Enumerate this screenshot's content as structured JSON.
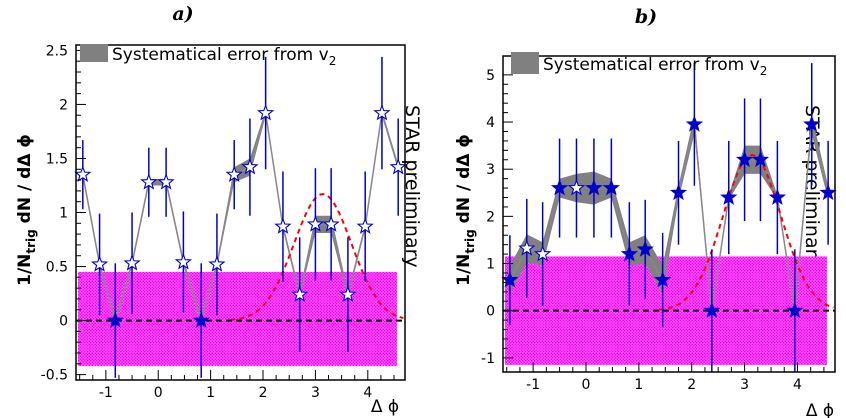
{
  "chart_data": [
    {
      "type": "scatter",
      "title": "a)",
      "ylabel_main": "1/N",
      "ylabel_sub": "trig",
      "ylabel_rest": " dN / dΔ ϕ",
      "xlabel": "Δ ϕ",
      "watermark": "STAR preliminary",
      "legend": {
        "label_main": "Systematical error from v",
        "label_sub": "2",
        "placement": "top-left"
      },
      "xlim": [
        -1.57,
        4.71
      ],
      "ylim": [
        -0.55,
        2.55
      ],
      "xticks": [
        -1,
        0,
        1,
        2,
        3,
        4
      ],
      "yticks": [
        -0.5,
        0,
        0.5,
        1,
        1.5,
        2,
        2.5
      ],
      "ytick_labels": [
        "-0.5",
        "0",
        "0.5",
        "1",
        "1.5",
        "2",
        "2.5"
      ],
      "zero_line": 0,
      "band": {
        "low": -0.42,
        "high": 0.45,
        "color": "#ff00ff"
      },
      "gaussian": {
        "amplitude": 1.17,
        "mean": 3.14,
        "sigma": 0.55,
        "color": "#ff0000"
      },
      "colors": {
        "marker": "#0000cc",
        "line": "#888888",
        "errorbar": "#0000cc"
      },
      "series": [
        {
          "x": [
            -1.44,
            -1.12,
            -0.82,
            -0.5,
            -0.18,
            0.15,
            0.48,
            0.82,
            1.12,
            1.45,
            1.75,
            2.05,
            2.38,
            2.7,
            3.0,
            3.3,
            3.62,
            3.95,
            4.27,
            4.58
          ],
          "y": [
            1.35,
            0.52,
            0.0,
            0.53,
            1.28,
            1.28,
            0.54,
            0.0,
            0.52,
            1.35,
            1.42,
            1.92,
            0.87,
            0.24,
            0.89,
            0.89,
            0.24,
            0.87,
            1.92,
            1.42
          ],
          "yerr": [
            0.32,
            0.47,
            0.53,
            0.47,
            0.32,
            0.32,
            0.47,
            0.53,
            0.47,
            0.32,
            0.45,
            0.52,
            0.51,
            0.53,
            0.52,
            0.52,
            0.53,
            0.51,
            0.52,
            0.45
          ],
          "syst": [
            0.03,
            0.03,
            0.03,
            0.03,
            0.03,
            0.03,
            0.03,
            0.03,
            0.03,
            0.07,
            0.08,
            0.03,
            0.03,
            0.03,
            0.08,
            0.08,
            0.03,
            0.03,
            0.03,
            0.03
          ],
          "filled": [
            false,
            false,
            true,
            false,
            false,
            false,
            false,
            true,
            false,
            false,
            false,
            false,
            false,
            false,
            false,
            false,
            false,
            false,
            false,
            false
          ]
        }
      ]
    },
    {
      "type": "scatter",
      "title": "b)",
      "ylabel_main": "1/N",
      "ylabel_sub": "trig",
      "ylabel_rest": " dN / dΔ ϕ",
      "xlabel": "Δ ϕ",
      "watermark": "STAR preliminary",
      "legend": {
        "label_main": "Systematical error from v",
        "label_sub": "2",
        "placement": "top-left"
      },
      "xlim": [
        -1.57,
        4.71
      ],
      "ylim": [
        -1.3,
        5.4
      ],
      "xticks": [
        -1,
        0,
        1,
        2,
        3,
        4
      ],
      "yticks": [
        -1,
        0,
        1,
        2,
        3,
        4,
        5
      ],
      "ytick_labels": [
        "-1",
        "0",
        "1",
        "2",
        "3",
        "4",
        "5"
      ],
      "zero_line": 0,
      "band": {
        "low": -1.15,
        "high": 1.15,
        "color": "#ff00ff"
      },
      "gaussian": {
        "amplitude": 3.3,
        "mean": 3.14,
        "sigma": 0.55,
        "color": "#ff0000"
      },
      "colors": {
        "marker": "#0000cc",
        "line": "#888888",
        "errorbar": "#0000cc"
      },
      "series": [
        {
          "x": [
            -1.44,
            -1.12,
            -0.82,
            -0.5,
            -0.18,
            0.15,
            0.48,
            0.82,
            1.12,
            1.45,
            1.75,
            2.05,
            2.38,
            2.7,
            3.0,
            3.3,
            3.62,
            3.95,
            4.27,
            4.58
          ],
          "y": [
            0.65,
            1.32,
            1.2,
            2.6,
            2.6,
            2.6,
            2.6,
            1.2,
            1.3,
            0.65,
            2.5,
            3.95,
            0.0,
            2.4,
            3.2,
            3.2,
            2.4,
            0.0,
            3.95,
            2.5
          ],
          "yerr": [
            0.95,
            1.05,
            1.1,
            1.05,
            1.05,
            1.05,
            1.05,
            1.1,
            1.05,
            1.0,
            1.1,
            1.3,
            1.3,
            1.2,
            1.3,
            1.3,
            1.2,
            1.3,
            1.3,
            1.1
          ],
          "syst": [
            0.3,
            0.3,
            0.25,
            0.2,
            0.3,
            0.35,
            0.2,
            0.25,
            0.3,
            0.3,
            0.15,
            0.2,
            0.05,
            0.05,
            0.3,
            0.3,
            0.05,
            0.05,
            0.2,
            0.15
          ],
          "filled": [
            true,
            false,
            false,
            true,
            false,
            true,
            true,
            true,
            true,
            true,
            true,
            true,
            true,
            true,
            true,
            true,
            true,
            true,
            true,
            true
          ]
        }
      ]
    }
  ]
}
